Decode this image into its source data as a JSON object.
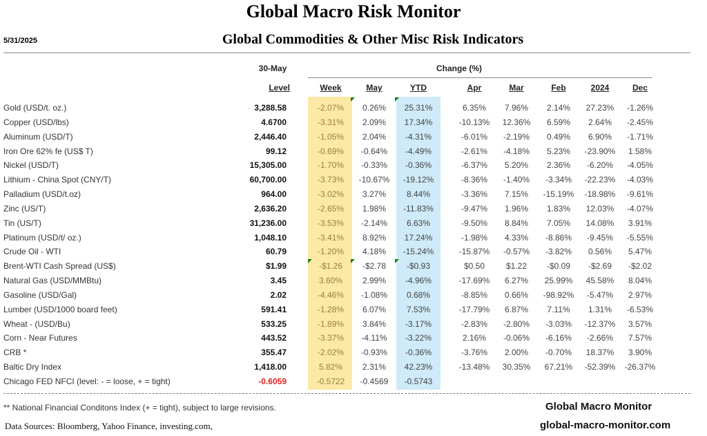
{
  "title": "Global Macro Risk Monitor",
  "subtitle": "Global Commodities & Other Misc Risk Indicators",
  "date": "5/31/2025",
  "header": {
    "level_date": "30-May",
    "change_group": "Change (%)",
    "columns": [
      "Level",
      "Week",
      "May",
      "YTD",
      "Apr",
      "Mar",
      "Feb",
      "2024",
      "Dec"
    ]
  },
  "colors": {
    "week_band": "#fde9a6",
    "ytd_band": "#cfeaf8",
    "negative_level": "#e02020"
  },
  "rows": [
    {
      "name": "Gold (USD/t. oz.)",
      "level": "3,288.58",
      "values": [
        "-2.07%",
        "0.26%",
        "25.31%",
        "6.35%",
        "7.96%",
        "2.14%",
        "27.23%",
        "-1.26%"
      ]
    },
    {
      "name": "Copper (USD/lbs)",
      "level": "4.6700",
      "values": [
        "-3.31%",
        "2.09%",
        "17.34%",
        "-10.13%",
        "12.36%",
        "6.59%",
        "2.64%",
        "-2.45%"
      ]
    },
    {
      "name": "Aluminum (USD/T)",
      "level": "2,446.40",
      "values": [
        "-1.05%",
        "2.04%",
        "-4.31%",
        "-6.01%",
        "-2.19%",
        "0.49%",
        "6.90%",
        "-1.71%"
      ]
    },
    {
      "name": "Iron Ore 62% fe (US$ T)",
      "level": "99.12",
      "values": [
        "-0.69%",
        "-0.64%",
        "-4.49%",
        "-2.61%",
        "-4.18%",
        "5.23%",
        "-23.90%",
        "1.58%"
      ]
    },
    {
      "name": "Nickel (USD/T)",
      "level": "15,305.00",
      "values": [
        "-1.70%",
        "-0.33%",
        "-0.36%",
        "-6.37%",
        "5.20%",
        "2.36%",
        "-6.20%",
        "-4.05%"
      ]
    },
    {
      "name": "Lithium - China Spot (CNY/T)",
      "level": "60,700.00",
      "values": [
        "-3.73%",
        "-10.67%",
        "-19.12%",
        "-8.36%",
        "-1.40%",
        "-3.34%",
        "-22.23%",
        "-4.03%"
      ]
    },
    {
      "name": "Palladium (USD/t.oz)",
      "level": "964.00",
      "values": [
        "-3.02%",
        "3.27%",
        "8.44%",
        "-3.36%",
        "7.15%",
        "-15.19%",
        "-18.98%",
        "-9.61%"
      ]
    },
    {
      "name": "Zinc (US/T)",
      "level": "2,636.20",
      "values": [
        "-2.65%",
        "1.98%",
        "-11.83%",
        "-9.47%",
        "1.96%",
        "1.83%",
        "12.03%",
        "-4.07%"
      ]
    },
    {
      "name": "Tin (US/T)",
      "level": "31,236.00",
      "values": [
        "-3.53%",
        "-2.14%",
        "6.63%",
        "-9.50%",
        "8.84%",
        "7.05%",
        "14.08%",
        "3.91%"
      ]
    },
    {
      "name": "Platinum (USD/t/ oz.)",
      "level": "1,048.10",
      "values": [
        "-3.41%",
        "8.92%",
        "17.24%",
        "-1.98%",
        "4.33%",
        "-8.86%",
        "-9.45%",
        "-5.55%"
      ]
    },
    {
      "name": "Crude Oil - WTI",
      "level": "60.79",
      "values": [
        "-1.20%",
        "4.18%",
        "-15.24%",
        "-15.87%",
        "-0.57%",
        "-3.82%",
        "0.56%",
        "5.47%"
      ]
    },
    {
      "name": "Brent-WTI Cash Spread (US$)",
      "level": "$1.99",
      "values": [
        "-$1.26",
        "-$2.78",
        "-$0.93",
        "$0.50",
        "$1.22",
        "-$0.09",
        "-$2.69",
        "-$2.02"
      ]
    },
    {
      "name": "Natural Gas  (USD/MMBtu)",
      "level": "3.45",
      "values": [
        "3.60%",
        "2.99%",
        "-4.96%",
        "-17.69%",
        "6.27%",
        "25.99%",
        "45.58%",
        "8.04%"
      ]
    },
    {
      "name": "Gasoline (USD/Gal)",
      "level": "2.02",
      "values": [
        "-4.46%",
        "-1.08%",
        "0.68%",
        "-8.85%",
        "0.66%",
        "-98.92%",
        "-5.47%",
        "2.97%"
      ]
    },
    {
      "name": "Lumber (USD/1000 board feet)",
      "level": "591.41",
      "values": [
        "-1.28%",
        "6.07%",
        "7.53%",
        "-17.79%",
        "6.87%",
        "7.11%",
        "1.31%",
        "-6.53%"
      ]
    },
    {
      "name": "Wheat - (USD/Bu)",
      "level": "533.25",
      "values": [
        "-1.89%",
        "3.84%",
        "-3.17%",
        "-2.83%",
        "-2.80%",
        "-3.03%",
        "-12.37%",
        "3.57%"
      ]
    },
    {
      "name": "Corn - Near Futures",
      "level": "443.52",
      "values": [
        "-3.37%",
        "-4.11%",
        "-3.22%",
        "2.16%",
        "-0.06%",
        "-6.16%",
        "-2.66%",
        "7.57%"
      ]
    },
    {
      "name": "CRB *",
      "level": "355.47",
      "values": [
        "-2.02%",
        "-0.93%",
        "-0.36%",
        "-3.76%",
        "2.00%",
        "-0.70%",
        "18.37%",
        "3.90%"
      ]
    },
    {
      "name": "Baltic Dry Index",
      "level": "1,418.00",
      "values": [
        "5.82%",
        "2.31%",
        "42.23%",
        "-13.48%",
        "30.35%",
        "67.21%",
        "-52.39%",
        "-26.37%"
      ]
    },
    {
      "name": "Chicago FED NFCI (level:  - = loose,  + = tight)",
      "level": "-0.6059",
      "level_negative": true,
      "values": [
        "-0.5722",
        "-0.4569",
        "-0.5743",
        "",
        "",
        "",
        "",
        ""
      ]
    }
  ],
  "footnote": "** National Financial Conditons Index (+ =  tight), subject to large revisions.",
  "sources": "Data Sources:  Bloomberg,  Yahoo Finance, investing.com,",
  "brand": "Global Macro Monitor",
  "site": "global-macro-monitor.com"
}
